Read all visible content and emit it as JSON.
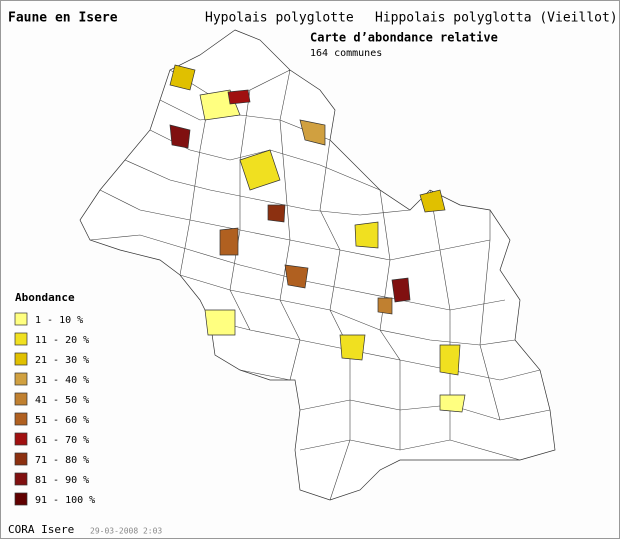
{
  "header": {
    "title": "Faune en Isere",
    "species_fr": "Hypolais polyglotte",
    "species_la": "Hippolais polyglotta (Vieillot)",
    "map_title": "Carte d’abondance relative",
    "count": "164 communes"
  },
  "legend": {
    "title": "Abondance",
    "items": [
      {
        "label": "1 - 10 %",
        "color": "#ffff80"
      },
      {
        "label": "11 - 20 %",
        "color": "#f0e020"
      },
      {
        "label": "21 - 30 %",
        "color": "#e0c000"
      },
      {
        "label": "31 - 40 %",
        "color": "#d0a040"
      },
      {
        "label": "41 - 50 %",
        "color": "#c08030"
      },
      {
        "label": "51 - 60 %",
        "color": "#b06020"
      },
      {
        "label": "61 - 70 %",
        "color": "#a01010"
      },
      {
        "label": "71 - 80 %",
        "color": "#8c3010"
      },
      {
        "label": "81 - 90 %",
        "color": "#801010"
      },
      {
        "label": "91 - 100 %",
        "color": "#600000"
      }
    ]
  },
  "footer": {
    "source": "CORA Isere",
    "date": "29-03-2008 2:03"
  }
}
